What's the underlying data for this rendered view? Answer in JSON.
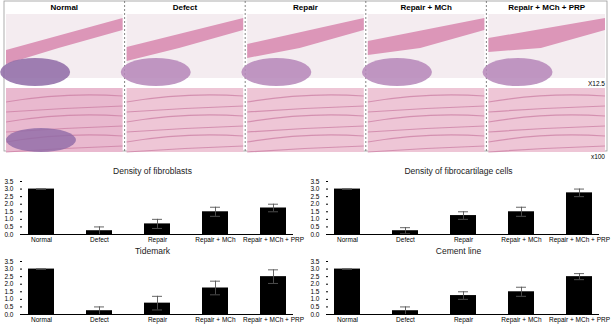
{
  "image_panel": {
    "columns": [
      "Normal",
      "Defect",
      "Repair",
      "Repair + MCh",
      "Repair + MCh + PRP"
    ],
    "magnifications": [
      "X12.5",
      "x100"
    ]
  },
  "chart_data": [
    {
      "type": "bar",
      "title": "Density of fibroblasts",
      "categories": [
        "Normal",
        "Defect",
        "Repair",
        "Repair + MCh",
        "Repair + MCh + PRP"
      ],
      "values": [
        3,
        0.25,
        0.7,
        1.5,
        1.75
      ],
      "errors": [
        0,
        0.25,
        0.3,
        0.3,
        0.25
      ],
      "color": "#000000",
      "ylim": [
        0,
        3.5
      ],
      "yticks": [
        0,
        0.5,
        1,
        1.5,
        2,
        2.5,
        3,
        3.5
      ]
    },
    {
      "type": "bar",
      "title": "Density of fibrocartilage cells",
      "categories": [
        "Normal",
        "Defect",
        "Repair",
        "Repair + MCh",
        "Repair + MCh + PRP"
      ],
      "values": [
        3,
        0.25,
        1.25,
        1.5,
        2.75
      ],
      "errors": [
        0,
        0.2,
        0.25,
        0.3,
        0.25
      ],
      "color": "#000000",
      "ylim": [
        0,
        3.5
      ],
      "yticks": [
        0,
        0.5,
        1,
        1.5,
        2,
        2.5,
        3,
        3.5
      ]
    },
    {
      "type": "bar",
      "title": "Tidemark",
      "categories": [
        "Normal",
        "Defect",
        "Repair",
        "Repair + MCh",
        "Repair + MCh + PRP"
      ],
      "values": [
        3,
        0.25,
        0.75,
        1.75,
        2.5
      ],
      "errors": [
        0,
        0.25,
        0.45,
        0.45,
        0.45
      ],
      "color": "#000000",
      "ylim": [
        0,
        3.5
      ],
      "yticks": [
        0,
        0.5,
        1,
        1.5,
        2,
        2.5,
        3,
        3.5
      ]
    },
    {
      "type": "bar",
      "title": "Cement line",
      "categories": [
        "Normal",
        "Defect",
        "Repair",
        "Repair + MCh",
        "Repair + MCh + PRP"
      ],
      "values": [
        3,
        0.25,
        1.25,
        1.5,
        2.5
      ],
      "errors": [
        0,
        0.25,
        0.25,
        0.3,
        0.2
      ],
      "color": "#000000",
      "ylim": [
        0,
        3.5
      ],
      "yticks": [
        0,
        0.5,
        1,
        1.5,
        2,
        2.5,
        3,
        3.5
      ]
    }
  ]
}
